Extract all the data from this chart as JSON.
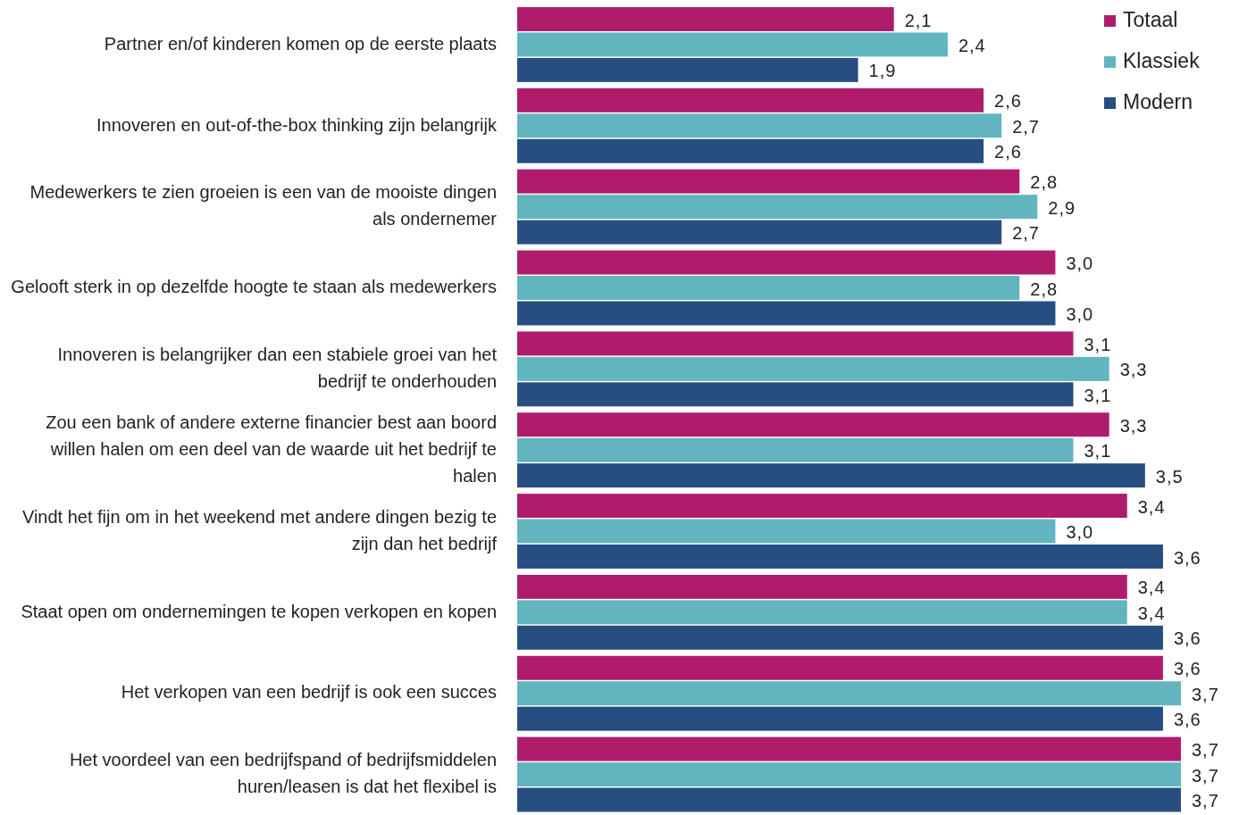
{
  "chart_data": {
    "type": "bar",
    "orientation": "horizontal",
    "legend": "top right",
    "tick_labels": "y",
    "categories": [
      "Partner en/of kinderen komen op de eerste plaats",
      "Innoveren en out-of-the-box thinking zijn belangrijk",
      "Medewerkers te zien groeien is een van de mooiste dingen als ondernemer",
      "Gelooft sterk in op dezelfde hoogte te staan als medewerkers",
      "Innoveren is belangrijker dan een stabiele groei van het bedrijf te onderhouden",
      "Zou een bank of andere externe financier best aan boord willen halen om een deel van de waarde uit het bedrijf te halen",
      "Vindt het fijn om in het weekend met andere dingen bezig te zijn dan het bedrijf",
      "Staat open om ondernemingen te kopen verkopen en kopen",
      "Het verkopen van een bedrijf is ook een succes",
      "Het voordeel van een bedrijfspand of bedrijfsmiddelen huren/leasen is dat het flexibel is"
    ],
    "series": [
      {
        "name": "Totaal",
        "color": "#b01c6c",
        "values": [
          2.1,
          2.6,
          2.8,
          3.0,
          3.1,
          3.3,
          3.4,
          3.4,
          3.6,
          3.7
        ],
        "value_labels": [
          "2,1",
          "2,6",
          "2,8",
          "3,0",
          "3,1",
          "3,3",
          "3,4",
          "3,4",
          "3,6",
          "3,7"
        ]
      },
      {
        "name": "Klassiek",
        "color": "#62b5bf",
        "values": [
          2.4,
          2.7,
          2.9,
          2.8,
          3.3,
          3.1,
          3.0,
          3.4,
          3.7,
          3.7
        ],
        "value_labels": [
          "2,4",
          "2,7",
          "2,9",
          "2,8",
          "3,3",
          "3,1",
          "3,0",
          "3,4",
          "3,7",
          "3,7"
        ]
      },
      {
        "name": "Modern",
        "color": "#264e80",
        "values": [
          1.9,
          2.6,
          2.7,
          3.0,
          3.1,
          3.5,
          3.6,
          3.6,
          3.6,
          3.7
        ],
        "value_labels": [
          "1,9",
          "2,6",
          "2,7",
          "3,0",
          "3,1",
          "3,5",
          "3,6",
          "3,6",
          "3,6",
          "3,7"
        ]
      }
    ]
  }
}
